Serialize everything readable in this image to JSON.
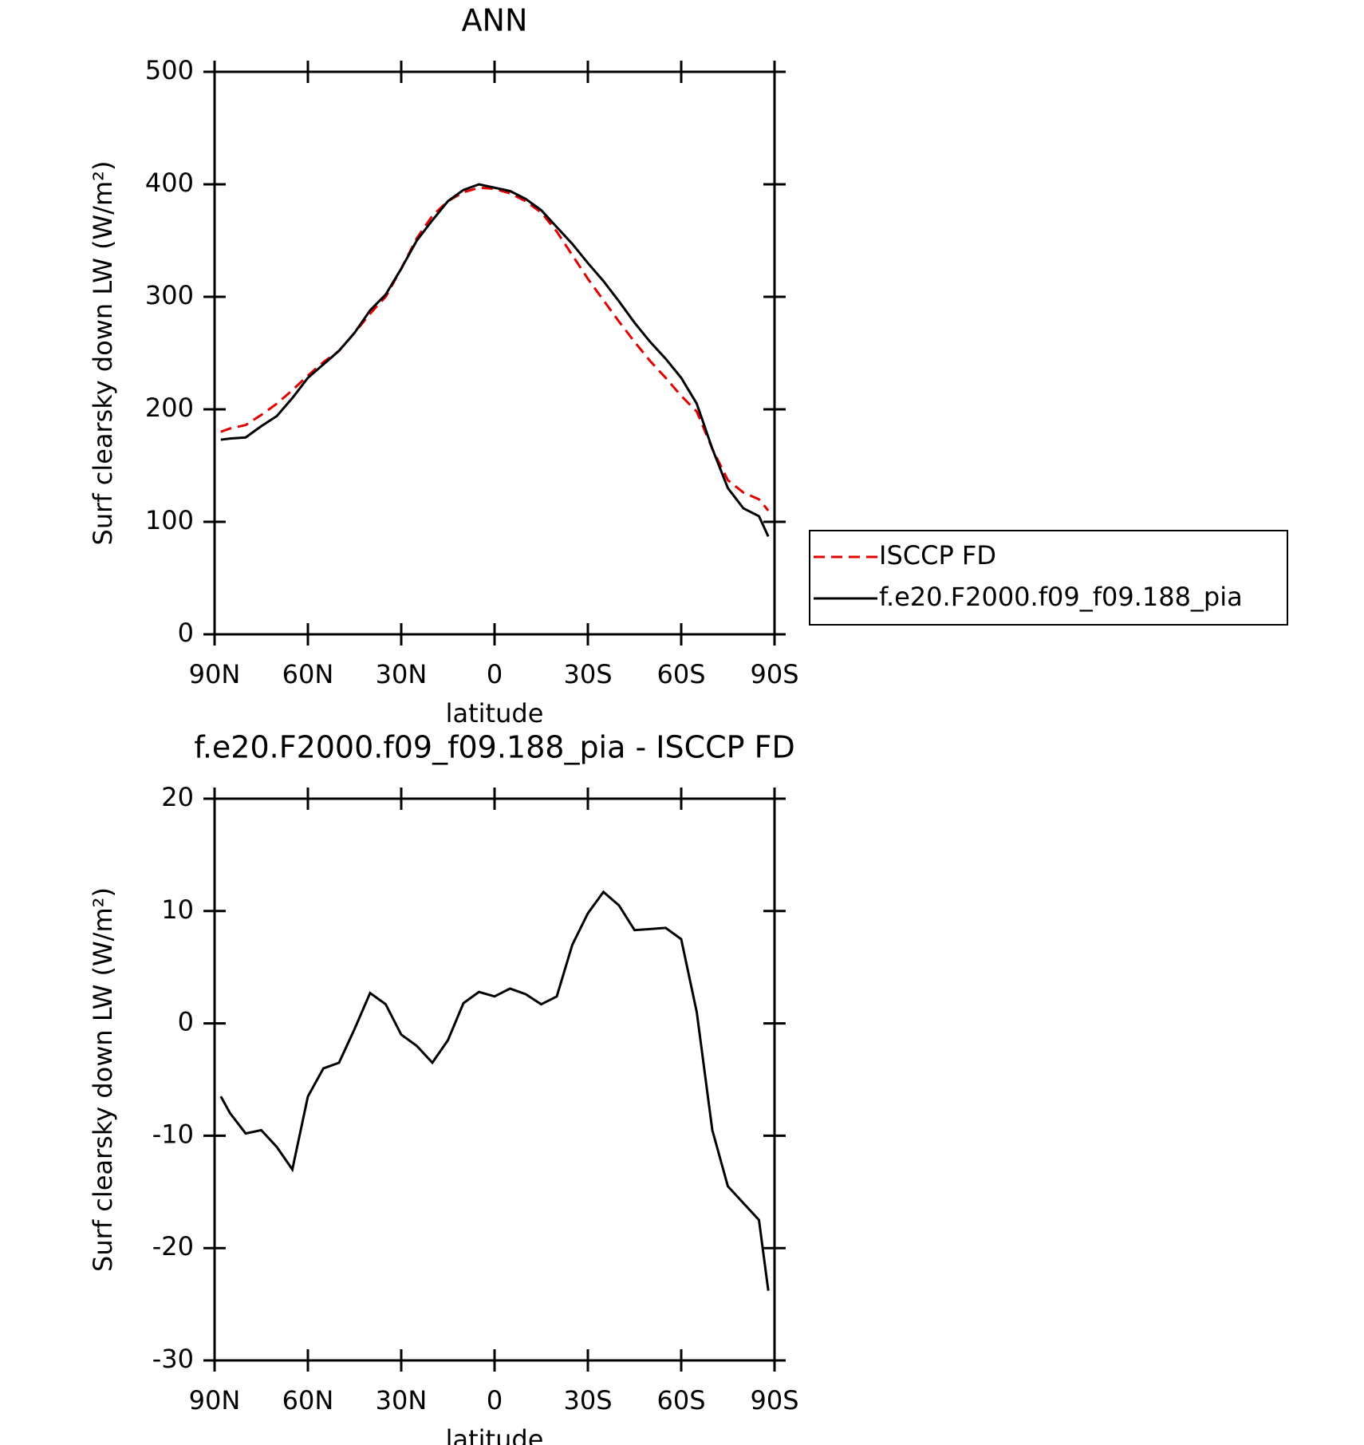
{
  "chart_data": [
    {
      "type": "line",
      "title": "ANN",
      "xlabel": "latitude",
      "ylabel": "Surf clearsky down LW (W/m²)",
      "x": [
        88,
        85,
        80,
        75,
        70,
        65,
        60,
        55,
        50,
        45,
        40,
        35,
        30,
        25,
        20,
        15,
        10,
        5,
        0,
        -5,
        -10,
        -15,
        -20,
        -25,
        -30,
        -35,
        -40,
        -45,
        -50,
        -55,
        -60,
        -65,
        -70,
        -75,
        -80,
        -85,
        -88
      ],
      "xlim": [
        90,
        -90
      ],
      "xticks": [
        {
          "value": 90,
          "label": "90N"
        },
        {
          "value": 60,
          "label": "60N"
        },
        {
          "value": 30,
          "label": "30N"
        },
        0,
        {
          "value": -30,
          "label": "30S"
        },
        {
          "value": -60,
          "label": "60S"
        },
        {
          "value": -90,
          "label": "90S"
        }
      ],
      "ylim": [
        0,
        500
      ],
      "yticks": [
        0,
        100,
        200,
        300,
        400,
        500
      ],
      "legend": "right",
      "series": [
        {
          "name": "ISCCP FD",
          "color": "#e00000",
          "linestyle": "dashed",
          "values": [
            180,
            183,
            186,
            195,
            205,
            217,
            230,
            242,
            252,
            268,
            285,
            300,
            325,
            352,
            372,
            385,
            393,
            397,
            396,
            392,
            385,
            375,
            358,
            337,
            316,
            297,
            278,
            260,
            243,
            228,
            212,
            198,
            165,
            137,
            126,
            120,
            110
          ]
        },
        {
          "name": "f.e20.F2000.f09_f09.188_pia",
          "color": "#000000",
          "linestyle": "solid",
          "values": [
            173,
            174,
            175,
            185,
            194,
            210,
            228,
            240,
            252,
            268,
            288,
            302,
            325,
            350,
            368,
            385,
            395,
            400,
            397,
            394,
            387,
            377,
            362,
            347,
            330,
            314,
            296,
            277,
            260,
            245,
            228,
            205,
            165,
            130,
            112,
            105,
            87
          ]
        }
      ]
    },
    {
      "type": "line",
      "title": "f.e20.F2000.f09_f09.188_pia - ISCCP FD",
      "xlabel": "latitude",
      "ylabel": "Surf clearsky down LW (W/m²)",
      "x": [
        88,
        85,
        80,
        75,
        70,
        65,
        60,
        55,
        50,
        45,
        40,
        35,
        30,
        25,
        20,
        15,
        10,
        5,
        0,
        -5,
        -10,
        -15,
        -20,
        -25,
        -30,
        -35,
        -40,
        -45,
        -50,
        -55,
        -60,
        -65,
        -70,
        -75,
        -80,
        -85,
        -88
      ],
      "xlim": [
        90,
        -90
      ],
      "xticks": [
        {
          "value": 90,
          "label": "90N"
        },
        {
          "value": 60,
          "label": "60N"
        },
        {
          "value": 30,
          "label": "30N"
        },
        0,
        {
          "value": -30,
          "label": "30S"
        },
        {
          "value": -60,
          "label": "60S"
        },
        {
          "value": -90,
          "label": "90S"
        }
      ],
      "ylim": [
        -30,
        20
      ],
      "yticks": [
        -30,
        -20,
        -10,
        0,
        10,
        20
      ],
      "series": [
        {
          "color": "#000000",
          "linestyle": "solid",
          "values": [
            -6.5,
            -8,
            -9.8,
            -9.5,
            -11,
            -13,
            -6.5,
            -4,
            -3.5,
            -0.5,
            2.7,
            1.7,
            -1,
            -2,
            -3.5,
            -1.5,
            1.8,
            2.8,
            2.4,
            3.1,
            2.6,
            1.7,
            2.4,
            7,
            9.8,
            11.7,
            10.5,
            8.3,
            8.4,
            8.5,
            7.5,
            1,
            -9.5,
            -14.5,
            -16,
            -17.5,
            -23.8
          ]
        }
      ]
    }
  ]
}
